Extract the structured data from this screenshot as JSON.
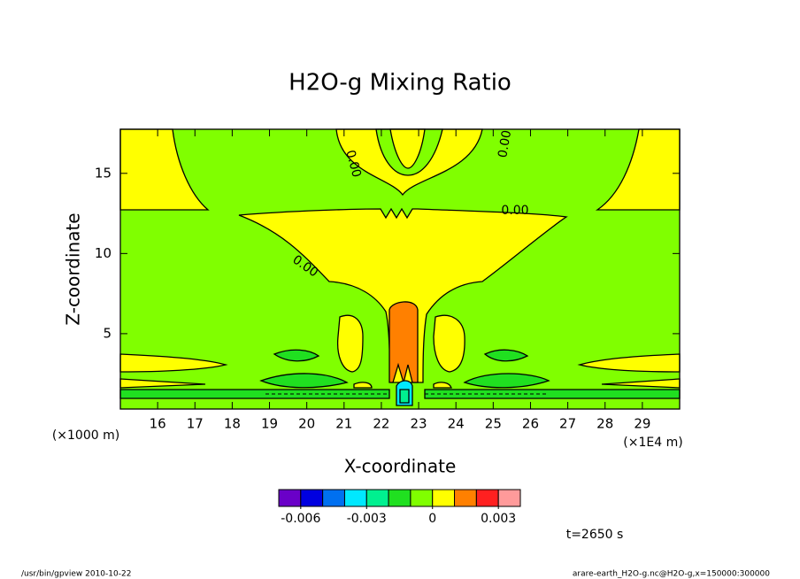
{
  "chart_data": {
    "type": "contour",
    "title": "H2O-g Mixing Ratio",
    "xlabel": "X-coordinate",
    "ylabel": "Z-coordinate",
    "x_unit": "(×1E4 m)",
    "y_unit": "(×1000 m)",
    "xlim": [
      15,
      30
    ],
    "xticks": [
      16,
      17,
      18,
      19,
      20,
      21,
      22,
      23,
      24,
      25,
      26,
      27,
      28,
      29
    ],
    "ylim": [
      0.3,
      17.75
    ],
    "yticks": [
      5,
      10,
      15
    ],
    "contour_labels": [
      "0.00",
      "0.00",
      "0.00",
      "0.00"
    ],
    "colorbar": {
      "colors": [
        "#6a00c8",
        "#0000e0",
        "#0070f0",
        "#00e8ff",
        "#00f090",
        "#20e020",
        "#80ff00",
        "#ffff00",
        "#ff8000",
        "#ff2020",
        "#ff9a9a"
      ],
      "lim": [
        -0.007,
        0.004
      ],
      "ticks": [
        -0.006,
        -0.003,
        0,
        0.003
      ]
    },
    "time_label": "t=2650 s",
    "footer_left": "/usr/bin/gpview  2010-10-22",
    "footer_right": "arare-earth_H2O-g.nc@H2O-g,x=150000:300000"
  }
}
